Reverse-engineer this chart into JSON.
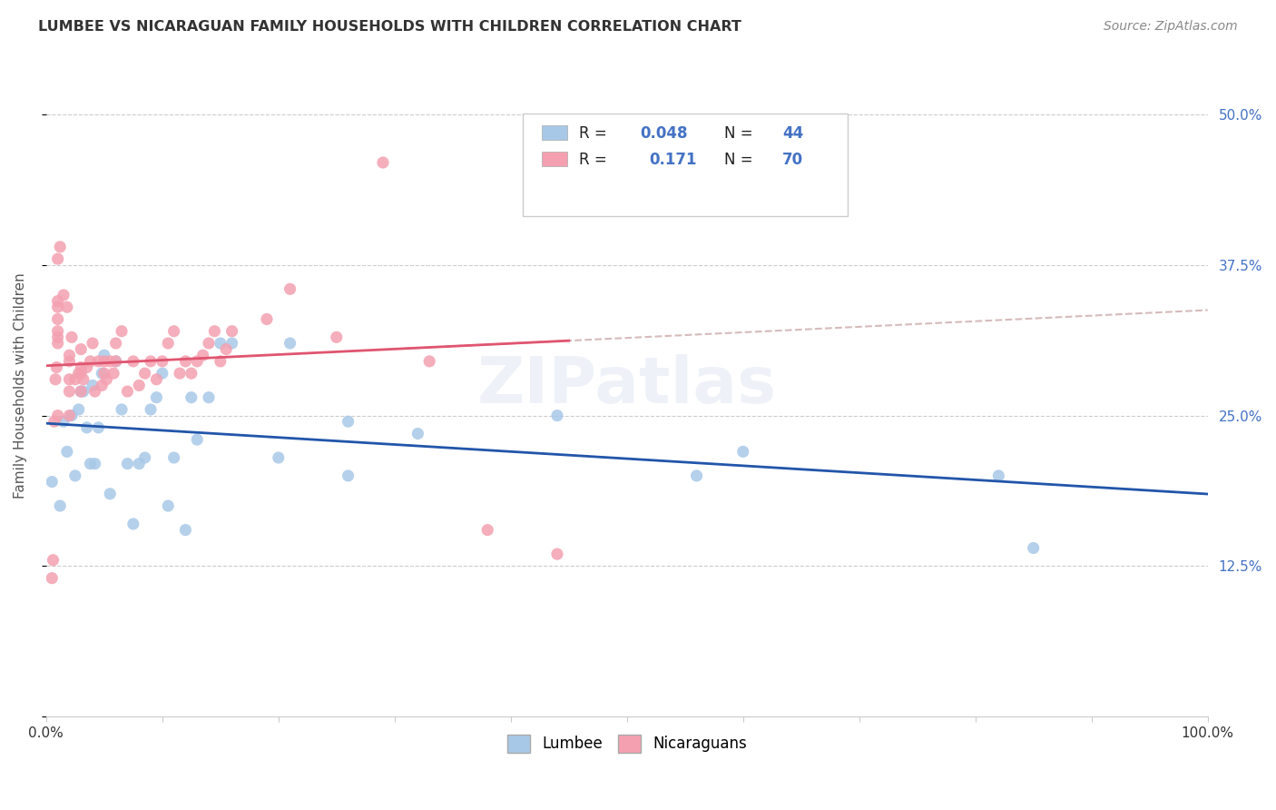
{
  "title": "LUMBEE VS NICARAGUAN FAMILY HOUSEHOLDS WITH CHILDREN CORRELATION CHART",
  "source": "Source: ZipAtlas.com",
  "ylabel": "Family Households with Children",
  "xlim": [
    0.0,
    1.0
  ],
  "ylim": [
    0.0,
    0.55
  ],
  "yticks": [
    0.0,
    0.125,
    0.25,
    0.375,
    0.5
  ],
  "ytick_labels_right": [
    "",
    "12.5%",
    "25.0%",
    "37.5%",
    "50.0%"
  ],
  "xticks": [
    0.0,
    0.1,
    0.2,
    0.3,
    0.4,
    0.5,
    0.6,
    0.7,
    0.8,
    0.9,
    1.0
  ],
  "xtick_labels": [
    "0.0%",
    "",
    "",
    "",
    "",
    "",
    "",
    "",
    "",
    "",
    "100.0%"
  ],
  "lumbee_color": "#a8c8e8",
  "nicaraguan_color": "#f4a0b0",
  "lumbee_line_color": "#2255aa",
  "nicaraguan_line_color": "#e05570",
  "trend_dashed_color": "#ccaaaa",
  "watermark": "ZIPatlas",
  "background_color": "#ffffff",
  "lumbee_x": [
    0.005,
    0.012,
    0.015,
    0.018,
    0.022,
    0.025,
    0.028,
    0.03,
    0.032,
    0.035,
    0.038,
    0.04,
    0.042,
    0.045,
    0.048,
    0.05,
    0.055,
    0.06,
    0.065,
    0.07,
    0.075,
    0.08,
    0.085,
    0.09,
    0.095,
    0.1,
    0.105,
    0.11,
    0.12,
    0.125,
    0.13,
    0.14,
    0.15,
    0.16,
    0.2,
    0.21,
    0.26,
    0.26,
    0.32,
    0.44,
    0.56,
    0.6,
    0.82,
    0.85
  ],
  "lumbee_y": [
    0.195,
    0.175,
    0.245,
    0.22,
    0.25,
    0.2,
    0.255,
    0.27,
    0.27,
    0.24,
    0.21,
    0.275,
    0.21,
    0.24,
    0.285,
    0.3,
    0.185,
    0.295,
    0.255,
    0.21,
    0.16,
    0.21,
    0.215,
    0.255,
    0.265,
    0.285,
    0.175,
    0.215,
    0.155,
    0.265,
    0.23,
    0.265,
    0.31,
    0.31,
    0.215,
    0.31,
    0.245,
    0.2,
    0.235,
    0.25,
    0.2,
    0.22,
    0.2,
    0.14
  ],
  "nicaraguan_x": [
    0.005,
    0.006,
    0.007,
    0.008,
    0.009,
    0.01,
    0.01,
    0.01,
    0.01,
    0.01,
    0.01,
    0.01,
    0.01,
    0.012,
    0.015,
    0.018,
    0.02,
    0.02,
    0.02,
    0.02,
    0.02,
    0.022,
    0.025,
    0.028,
    0.03,
    0.03,
    0.03,
    0.03,
    0.032,
    0.035,
    0.038,
    0.04,
    0.042,
    0.045,
    0.048,
    0.05,
    0.05,
    0.052,
    0.055,
    0.058,
    0.06,
    0.06,
    0.065,
    0.07,
    0.075,
    0.08,
    0.085,
    0.09,
    0.095,
    0.1,
    0.105,
    0.11,
    0.115,
    0.12,
    0.125,
    0.13,
    0.135,
    0.14,
    0.145,
    0.15,
    0.155,
    0.16,
    0.19,
    0.21,
    0.25,
    0.29,
    0.33,
    0.38,
    0.44,
    0.5
  ],
  "nicaraguan_y": [
    0.115,
    0.13,
    0.245,
    0.28,
    0.29,
    0.25,
    0.31,
    0.315,
    0.32,
    0.33,
    0.34,
    0.345,
    0.38,
    0.39,
    0.35,
    0.34,
    0.25,
    0.27,
    0.28,
    0.295,
    0.3,
    0.315,
    0.28,
    0.285,
    0.27,
    0.285,
    0.29,
    0.305,
    0.28,
    0.29,
    0.295,
    0.31,
    0.27,
    0.295,
    0.275,
    0.285,
    0.295,
    0.28,
    0.295,
    0.285,
    0.295,
    0.31,
    0.32,
    0.27,
    0.295,
    0.275,
    0.285,
    0.295,
    0.28,
    0.295,
    0.31,
    0.32,
    0.285,
    0.295,
    0.285,
    0.295,
    0.3,
    0.31,
    0.32,
    0.295,
    0.305,
    0.32,
    0.33,
    0.355,
    0.315,
    0.46,
    0.295,
    0.155,
    0.135,
    0.455
  ]
}
